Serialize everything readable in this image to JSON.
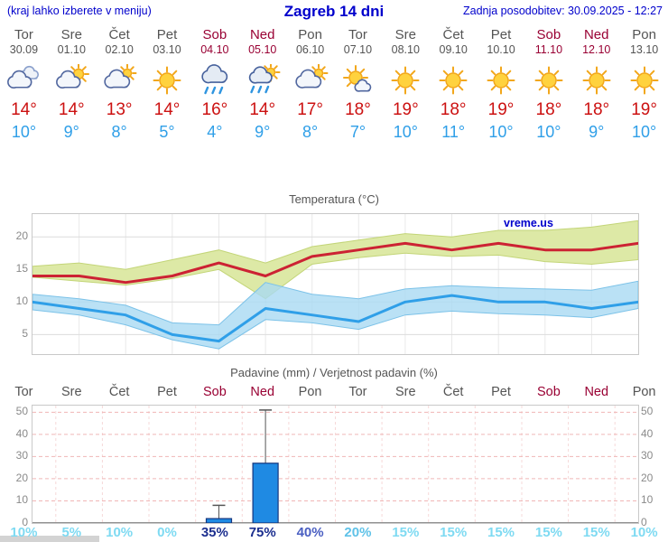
{
  "header": {
    "hint": "(kraj lahko izberete v meniju)",
    "title": "Zagreb 14 dni",
    "updated": "Zadnja posodobitev: 30.09.2025 - 12:27"
  },
  "colors": {
    "blue_text": "#0000cc",
    "weekday": "#545454",
    "weekend": "#990033",
    "temp_high": "#cc1111",
    "temp_low": "#2f9fe8"
  },
  "forecast": {
    "days": [
      {
        "name": "Tor",
        "date": "30.09",
        "weekend": false,
        "icon": "cloudy",
        "high": "14°",
        "low": "10°"
      },
      {
        "name": "Sre",
        "date": "01.10",
        "weekend": false,
        "icon": "partly-cloudy",
        "high": "14°",
        "low": "9°"
      },
      {
        "name": "Čet",
        "date": "02.10",
        "weekend": false,
        "icon": "mostly-cloudy",
        "high": "13°",
        "low": "8°"
      },
      {
        "name": "Pet",
        "date": "03.10",
        "weekend": false,
        "icon": "sunny",
        "high": "14°",
        "low": "5°"
      },
      {
        "name": "Sob",
        "date": "04.10",
        "weekend": true,
        "icon": "rain",
        "high": "16°",
        "low": "4°"
      },
      {
        "name": "Ned",
        "date": "05.10",
        "weekend": true,
        "icon": "sun-rain",
        "high": "14°",
        "low": "9°"
      },
      {
        "name": "Pon",
        "date": "06.10",
        "weekend": false,
        "icon": "mostly-cloudy",
        "high": "17°",
        "low": "8°"
      },
      {
        "name": "Tor",
        "date": "07.10",
        "weekend": false,
        "icon": "mostly-sunny",
        "high": "18°",
        "low": "7°"
      },
      {
        "name": "Sre",
        "date": "08.10",
        "weekend": false,
        "icon": "sunny",
        "high": "19°",
        "low": "10°"
      },
      {
        "name": "Čet",
        "date": "09.10",
        "weekend": false,
        "icon": "sunny",
        "high": "18°",
        "low": "11°"
      },
      {
        "name": "Pet",
        "date": "10.10",
        "weekend": false,
        "icon": "sunny",
        "high": "19°",
        "low": "10°"
      },
      {
        "name": "Sob",
        "date": "11.10",
        "weekend": true,
        "icon": "sunny",
        "high": "18°",
        "low": "10°"
      },
      {
        "name": "Ned",
        "date": "12.10",
        "weekend": true,
        "icon": "sunny",
        "high": "18°",
        "low": "9°"
      },
      {
        "name": "Pon",
        "date": "13.10",
        "weekend": false,
        "icon": "sunny",
        "high": "19°",
        "low": "10°"
      }
    ]
  },
  "chart_data": [
    {
      "type": "line",
      "title": "Temperatura (°C)",
      "watermark": "vreme.us",
      "x": [
        "Tor 30.09",
        "Sre 01.10",
        "Čet 02.10",
        "Pet 03.10",
        "Sob 04.10",
        "Ned 05.10",
        "Pon 06.10",
        "Tor 07.10",
        "Sre 08.10",
        "Čet 09.10",
        "Pet 10.10",
        "Sob 11.10",
        "Ned 12.10",
        "Pon 13.10"
      ],
      "ylim": [
        2,
        23.5
      ],
      "yticks": [
        5,
        10,
        15,
        20
      ],
      "series": [
        {
          "name": "max-temperatura",
          "color": "#cc2233",
          "values": [
            14,
            14,
            13,
            14,
            16,
            14,
            17,
            18,
            19,
            18,
            19,
            18,
            18,
            19
          ]
        },
        {
          "name": "min-temperatura",
          "color": "#2f9fe8",
          "values": [
            10,
            9,
            8,
            5,
            4,
            9,
            8,
            7,
            10,
            11,
            10,
            10,
            9,
            10
          ]
        }
      ],
      "bands": [
        {
          "name": "max-razpon",
          "color": "#dde9a6",
          "edge": "#c3d578",
          "opacity": 1,
          "upper": [
            15.5,
            16,
            15,
            16.5,
            18,
            16,
            18.5,
            19.5,
            20.5,
            20,
            21,
            21,
            21.5,
            22.5
          ],
          "lower": [
            13.8,
            13.2,
            12.6,
            13.6,
            15,
            10.5,
            15.8,
            16.8,
            17.5,
            17,
            17.2,
            16.2,
            15.8,
            16.5
          ]
        },
        {
          "name": "min-razpon",
          "color": "#a9d9f2",
          "edge": "#7cc2e8",
          "opacity": 0.8,
          "upper": [
            11.2,
            10.5,
            9.5,
            6.8,
            6.5,
            13,
            11.2,
            10.5,
            12,
            12.5,
            12.2,
            12,
            11.8,
            13.2
          ],
          "lower": [
            8.8,
            8,
            6.5,
            4.2,
            2.8,
            7.3,
            6.8,
            5.8,
            8,
            8.6,
            8.2,
            8,
            7.6,
            9
          ]
        }
      ]
    },
    {
      "type": "bar",
      "title": "Padavine (mm) / Verjetnost padavin (%)",
      "categories": [
        "Tor",
        "Sre",
        "Čet",
        "Pet",
        "Sob",
        "Ned",
        "Pon",
        "Tor",
        "Sre",
        "Čet",
        "Pet",
        "Sob",
        "Ned",
        "Pon"
      ],
      "values": [
        0,
        0,
        0,
        0,
        2,
        27,
        0,
        0,
        0,
        0,
        0,
        0,
        0,
        0
      ],
      "whisker_max": [
        0,
        0,
        0,
        0,
        8,
        51,
        0,
        0,
        0,
        0,
        0,
        0,
        0,
        0
      ],
      "probabilities": [
        {
          "label": "10%",
          "color": "#7edaf2"
        },
        {
          "label": "5%",
          "color": "#7edaf2"
        },
        {
          "label": "10%",
          "color": "#7edaf2"
        },
        {
          "label": "0%",
          "color": "#7edaf2"
        },
        {
          "label": "35%",
          "color": "#1c2f8f"
        },
        {
          "label": "75%",
          "color": "#1c2f8f"
        },
        {
          "label": "40%",
          "color": "#4a5fc2"
        },
        {
          "label": "20%",
          "color": "#5fc2e8"
        },
        {
          "label": "15%",
          "color": "#7edaf2"
        },
        {
          "label": "15%",
          "color": "#7edaf2"
        },
        {
          "label": "15%",
          "color": "#7edaf2"
        },
        {
          "label": "15%",
          "color": "#7edaf2"
        },
        {
          "label": "15%",
          "color": "#7edaf2"
        },
        {
          "label": "10%",
          "color": "#7edaf2"
        }
      ],
      "ylim": [
        0,
        53
      ],
      "yticks": [
        0,
        10,
        20,
        30,
        40,
        50
      ],
      "bar_color": "#1f8ae3",
      "bar_edge": "#15357d"
    }
  ]
}
